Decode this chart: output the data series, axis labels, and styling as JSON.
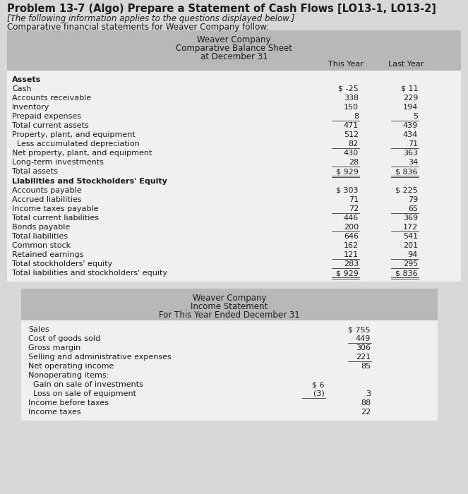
{
  "title": "Problem 13-7 (Algo) Prepare a Statement of Cash Flows [LO13-1, LO13-2]",
  "subtitle1": "[The following information applies to the questions displayed below.]",
  "subtitle2": "Comparative financial statements for Weaver Company follow:",
  "bs_header1": "Weaver Company",
  "bs_header2": "Comparative Balance Sheet",
  "bs_header3": "at December 31",
  "col_header1": "This Year",
  "col_header2": "Last Year",
  "bs_assets": [
    {
      "label": "Assets",
      "ty": "",
      "ly": "",
      "bold": true,
      "ul": false,
      "dul": false
    },
    {
      "label": "Cash",
      "ty": "$ -25",
      "ly": "$ 11",
      "bold": false,
      "ul": false,
      "dul": false
    },
    {
      "label": "Accounts receivable",
      "ty": "338",
      "ly": "229",
      "bold": false,
      "ul": false,
      "dul": false
    },
    {
      "label": "Inventory",
      "ty": "150",
      "ly": "194",
      "bold": false,
      "ul": false,
      "dul": false
    },
    {
      "label": "Prepaid expenses",
      "ty": "8",
      "ly": "5",
      "bold": false,
      "ul": true,
      "dul": false
    },
    {
      "label": "Total current assets",
      "ty": "471",
      "ly": "439",
      "bold": false,
      "ul": false,
      "dul": false
    },
    {
      "label": "Property, plant, and equipment",
      "ty": "512",
      "ly": "434",
      "bold": false,
      "ul": false,
      "dul": false
    },
    {
      "label": "  Less accumulated depreciation",
      "ty": "82",
      "ly": "71",
      "bold": false,
      "ul": true,
      "dul": false
    },
    {
      "label": "Net property, plant, and equipment",
      "ty": "430",
      "ly": "363",
      "bold": false,
      "ul": false,
      "dul": false
    },
    {
      "label": "Long-term investments",
      "ty": "28",
      "ly": "34",
      "bold": false,
      "ul": true,
      "dul": false
    },
    {
      "label": "Total assets",
      "ty": "$ 929",
      "ly": "$ 836",
      "bold": false,
      "ul": false,
      "dul": true
    }
  ],
  "bs_liab": [
    {
      "label": "Liabilities and Stockholders' Equity",
      "ty": "",
      "ly": "",
      "bold": true,
      "ul": false,
      "dul": false
    },
    {
      "label": "Accounts payable",
      "ty": "$ 303",
      "ly": "$ 225",
      "bold": false,
      "ul": false,
      "dul": false
    },
    {
      "label": "Accrued liabilities",
      "ty": "71",
      "ly": "79",
      "bold": false,
      "ul": false,
      "dul": false
    },
    {
      "label": "Income taxes payable",
      "ty": "72",
      "ly": "65",
      "bold": false,
      "ul": true,
      "dul": false
    },
    {
      "label": "Total current liabilities",
      "ty": "446",
      "ly": "369",
      "bold": false,
      "ul": false,
      "dul": false
    },
    {
      "label": "Bonds payable",
      "ty": "200",
      "ly": "172",
      "bold": false,
      "ul": true,
      "dul": false
    },
    {
      "label": "Total liabilities",
      "ty": "646",
      "ly": "541",
      "bold": false,
      "ul": false,
      "dul": false
    },
    {
      "label": "Common stock",
      "ty": "162",
      "ly": "201",
      "bold": false,
      "ul": false,
      "dul": false
    },
    {
      "label": "Retained earnings",
      "ty": "121",
      "ly": "94",
      "bold": false,
      "ul": true,
      "dul": false
    },
    {
      "label": "Total stockholders' equity",
      "ty": "283",
      "ly": "295",
      "bold": false,
      "ul": true,
      "dul": false
    },
    {
      "label": "Total liabilities and stockholders' equity",
      "ty": "$ 929",
      "ly": "$ 836",
      "bold": false,
      "ul": false,
      "dul": true
    }
  ],
  "is_header1": "Weaver Company",
  "is_header2": "Income Statement",
  "is_header3": "For This Year Ended December 31",
  "is_rows": [
    {
      "label": "Sales",
      "c1": "",
      "c2": "$ 755",
      "ul_c1": false,
      "ul_c2": false
    },
    {
      "label": "Cost of goods sold",
      "c1": "",
      "c2": "449",
      "ul_c1": false,
      "ul_c2": true
    },
    {
      "label": "Gross margin",
      "c1": "",
      "c2": "306",
      "ul_c1": false,
      "ul_c2": false
    },
    {
      "label": "Selling and administrative expenses",
      "c1": "",
      "c2": "221",
      "ul_c1": false,
      "ul_c2": true
    },
    {
      "label": "Net operating income",
      "c1": "",
      "c2": "85",
      "ul_c1": false,
      "ul_c2": false
    },
    {
      "label": "Nonoperating items:",
      "c1": "",
      "c2": "",
      "ul_c1": false,
      "ul_c2": false
    },
    {
      "label": "  Gain on sale of investments",
      "c1": "$ 6",
      "c2": "",
      "ul_c1": false,
      "ul_c2": false
    },
    {
      "label": "  Loss on sale of equipment",
      "c1": "(3)",
      "c2": "3",
      "ul_c1": true,
      "ul_c2": false
    },
    {
      "label": "Income before taxes",
      "c1": "",
      "c2": "88",
      "ul_c1": false,
      "ul_c2": false
    },
    {
      "label": "Income taxes",
      "c1": "",
      "c2": "22",
      "ul_c1": false,
      "ul_c2": false
    }
  ],
  "page_bg": "#d8d8d8",
  "table_header_bg": "#b8b8b8",
  "table_body_bg": "#f0f0f0",
  "is_table_bg": "#b8b8b8",
  "is_body_bg": "#f0f0f0"
}
